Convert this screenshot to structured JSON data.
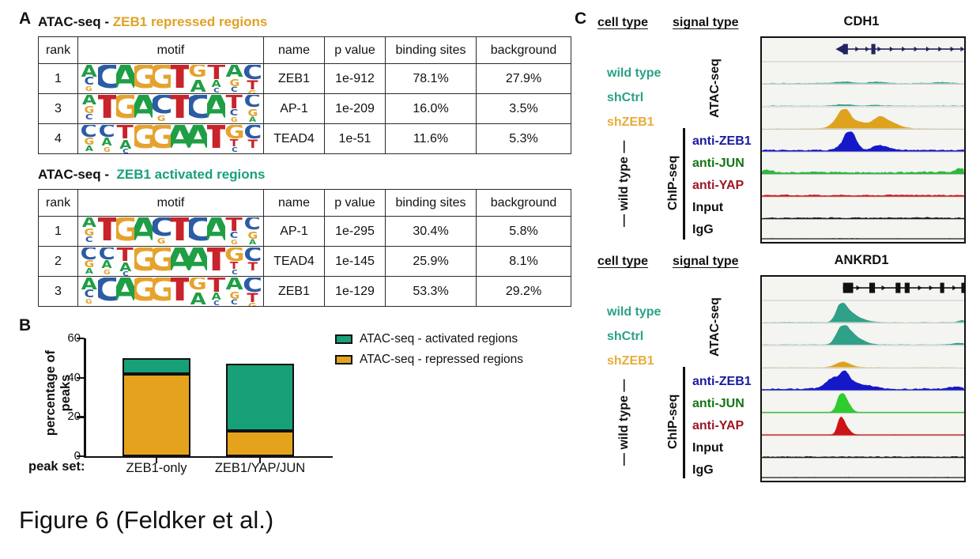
{
  "caption": "Figure 6 (Feldker et al.)",
  "panelA": {
    "label": "A",
    "motif_colors": {
      "A": "#1F9E45",
      "C": "#2B5CA5",
      "G": "#E5A32E",
      "T": "#C8242B"
    },
    "motifs": {
      "ZEB1": [
        [
          [
            "A",
            0.5
          ],
          [
            "C",
            0.32
          ],
          [
            "G",
            0.2
          ]
        ],
        [
          [
            "C",
            1
          ]
        ],
        [
          [
            "A",
            1
          ]
        ],
        [
          [
            "G",
            1
          ]
        ],
        [
          [
            "G",
            1
          ]
        ],
        [
          [
            "T",
            1
          ]
        ],
        [
          [
            "G",
            0.55
          ],
          [
            "A",
            0.5
          ]
        ],
        [
          [
            "T",
            0.65
          ],
          [
            "A",
            0.3
          ],
          [
            "C",
            0.2
          ]
        ],
        [
          [
            "A",
            0.55
          ],
          [
            "G",
            0.3
          ],
          [
            "C",
            0.22
          ]
        ],
        [
          [
            "C",
            0.65
          ],
          [
            "T",
            0.4
          ],
          [
            "G",
            0.25
          ]
        ]
      ],
      "AP-1": [
        [
          [
            "A",
            0.45
          ],
          [
            "G",
            0.3
          ],
          [
            "C",
            0.25
          ]
        ],
        [
          [
            "T",
            1
          ]
        ],
        [
          [
            "G",
            1
          ]
        ],
        [
          [
            "A",
            1
          ]
        ],
        [
          [
            "C",
            0.8
          ],
          [
            "G",
            0.25
          ]
        ],
        [
          [
            "T",
            1
          ]
        ],
        [
          [
            "C",
            1
          ]
        ],
        [
          [
            "A",
            1
          ]
        ],
        [
          [
            "T",
            0.6
          ],
          [
            "C",
            0.28
          ],
          [
            "G",
            0.2
          ]
        ],
        [
          [
            "C",
            0.55
          ],
          [
            "G",
            0.3
          ],
          [
            "A",
            0.22
          ]
        ]
      ],
      "TEAD4": [
        [
          [
            "C",
            0.55
          ],
          [
            "G",
            0.3
          ],
          [
            "A",
            0.25
          ]
        ],
        [
          [
            "C",
            0.55
          ],
          [
            "A",
            0.32
          ],
          [
            "G",
            0.2
          ]
        ],
        [
          [
            "T",
            0.6
          ],
          [
            "A",
            0.38
          ],
          [
            "C",
            0.2
          ]
        ],
        [
          [
            "G",
            1
          ]
        ],
        [
          [
            "G",
            1
          ]
        ],
        [
          [
            "A",
            1
          ]
        ],
        [
          [
            "A",
            1
          ]
        ],
        [
          [
            "T",
            1
          ]
        ],
        [
          [
            "G",
            0.6
          ],
          [
            "T",
            0.3
          ],
          [
            "C",
            0.2
          ]
        ],
        [
          [
            "C",
            0.6
          ],
          [
            "T",
            0.35
          ]
        ]
      ]
    },
    "tables": [
      {
        "title_prefix": "ATAC-seq - ",
        "title_highlight": "ZEB1 repressed regions",
        "title_color": "#DFA226",
        "headers": [
          "rank",
          "motif",
          "name",
          "p value",
          "binding sites",
          "background"
        ],
        "rows": [
          {
            "rank": "1",
            "motif": "ZEB1",
            "name": "ZEB1",
            "p_value": "1e-912",
            "binding_sites": "78.1%",
            "background": "27.9%"
          },
          {
            "rank": "3",
            "motif": "AP-1",
            "name": "AP-1",
            "p_value": "1e-209",
            "binding_sites": "16.0%",
            "background": "3.5%"
          },
          {
            "rank": "4",
            "motif": "TEAD4",
            "name": "TEAD4",
            "p_value": "1e-51",
            "binding_sites": "11.6%",
            "background": "5.3%"
          }
        ]
      },
      {
        "title_prefix": "ATAC-seq -  ",
        "title_highlight": "ZEB1 activated regions",
        "title_color": "#18A07C",
        "headers": [
          "rank",
          "motif",
          "name",
          "p value",
          "binding sites",
          "background"
        ],
        "rows": [
          {
            "rank": "1",
            "motif": "AP-1",
            "name": "AP-1",
            "p_value": "1e-295",
            "binding_sites": "30.4%",
            "background": "5.8%"
          },
          {
            "rank": "2",
            "motif": "TEAD4",
            "name": "TEAD4",
            "p_value": "1e-145",
            "binding_sites": "25.9%",
            "background": "8.1%"
          },
          {
            "rank": "3",
            "motif": "ZEB1",
            "name": "ZEB1",
            "p_value": "1e-129",
            "binding_sites": "53.3%",
            "background": "29.2%"
          }
        ]
      }
    ]
  },
  "panelB": {
    "label": "B"
  },
  "chart_data": {
    "type": "bar",
    "stacked": true,
    "categories": [
      "ZEB1-only",
      "ZEB1/YAP/JUN"
    ],
    "series": [
      {
        "name": "ATAC-seq - repressed regions",
        "color": "#E5A31D",
        "values": [
          42,
          13
        ]
      },
      {
        "name": "ATAC-seq - activated regions",
        "color": "#18A078",
        "values": [
          8,
          34
        ]
      }
    ],
    "totals": [
      50,
      47
    ],
    "title": "",
    "xlabel": "peak set:",
    "ylabel": "percentage of peaks",
    "ylim": [
      0,
      60
    ],
    "yticks": [
      0,
      20,
      40,
      60
    ],
    "grid": false,
    "legend_position": "top-right"
  },
  "panelC": {
    "label": "C",
    "col_headers": {
      "cell_type": "cell type",
      "signal_type": "signal type"
    },
    "cell_labels": [
      {
        "text": "wild type",
        "color": "#2AA186"
      },
      {
        "text": "shCtrl",
        "color": "#2AA186"
      },
      {
        "text": "shZEB1",
        "color": "#E8AC3A"
      }
    ],
    "group_cell_label": "— wild type —",
    "signal_groups": {
      "atac": "ATAC-seq",
      "chip": "ChIP-seq"
    },
    "track_labels": [
      {
        "text": "anti-ZEB1",
        "color": "#1A1AA0"
      },
      {
        "text": "anti-JUN",
        "color": "#157515"
      },
      {
        "text": "anti-YAP",
        "color": "#A01525"
      },
      {
        "text": "Input",
        "color": "#111111"
      },
      {
        "text": "IgG",
        "color": "#111111"
      }
    ],
    "panels": [
      {
        "gene": "CDH1",
        "gene_model": {
          "color": "#23235E",
          "line_start": 0.4,
          "start_arrow": true,
          "exons": [
            {
              "x": 0.405,
              "w": 0.024
            },
            {
              "x": 0.545,
              "w": 0.02
            }
          ],
          "ticks": [
            0.47,
            0.52,
            0.58,
            0.64,
            0.7,
            0.76,
            0.82,
            0.88,
            0.94,
            0.99
          ]
        },
        "tracks": [
          {
            "row": "wild type ATAC-seq",
            "color": "#2FA188",
            "noise": 0.05,
            "sparse": true,
            "baseline": false,
            "peaks": [
              {
                "c": 0.4,
                "h": 0.07,
                "w": 0.05
              },
              {
                "c": 0.57,
                "h": 0.06,
                "w": 0.04
              },
              {
                "c": 0.88,
                "h": 0.05,
                "w": 0.04
              }
            ]
          },
          {
            "row": "shCtrl ATAC-seq",
            "color": "#2FA188",
            "noise": 0.04,
            "sparse": true,
            "baseline": false,
            "peaks": [
              {
                "c": 0.4,
                "h": 0.07,
                "w": 0.04
              },
              {
                "c": 0.55,
                "h": 0.04,
                "w": 0.03
              }
            ]
          },
          {
            "row": "shZEB1 ATAC-seq",
            "color": "#DFA21F",
            "noise": 0.02,
            "sparse": true,
            "baseline": false,
            "peaks": [
              {
                "c": 0.405,
                "h": 0.85,
                "w": 0.022
              },
              {
                "c": 0.37,
                "h": 0.35,
                "w": 0.03
              },
              {
                "c": 0.46,
                "h": 0.25,
                "w": 0.04
              },
              {
                "c": 0.575,
                "h": 0.42,
                "w": 0.03
              },
              {
                "c": 0.63,
                "h": 0.22,
                "w": 0.04
              },
              {
                "c": 0.52,
                "h": 0.12,
                "w": 0.1
              }
            ]
          },
          {
            "row": "anti-ZEB1 ChIP-seq",
            "color": "#1518C8",
            "noise": 0.1,
            "sparse": false,
            "baseline": true,
            "peaks": [
              {
                "c": 0.425,
                "h": 0.88,
                "w": 0.018
              },
              {
                "c": 0.455,
                "h": 0.4,
                "w": 0.02
              },
              {
                "c": 0.4,
                "h": 0.3,
                "w": 0.03
              },
              {
                "c": 0.565,
                "h": 0.2,
                "w": 0.025
              },
              {
                "c": 0.6,
                "h": 0.1,
                "w": 0.03
              }
            ]
          },
          {
            "row": "anti-JUN ChIP-seq",
            "color": "#2DB83C",
            "noise": 0.13,
            "sparse": false,
            "baseline": true,
            "peaks": [
              {
                "c": 0.005,
                "h": 0.18,
                "w": 0.03
              },
              {
                "c": 0.975,
                "h": 0.18,
                "w": 0.03
              }
            ]
          },
          {
            "row": "anti-YAP ChIP-seq",
            "color": "#CC1414",
            "noise": 0.09,
            "sparse": false,
            "baseline": true,
            "peaks": []
          },
          {
            "row": "Input",
            "color": "#1f1f1f",
            "noise": 0.09,
            "sparse": false,
            "baseline": true,
            "peaks": []
          },
          {
            "row": "IgG",
            "color": "#1f1f1f",
            "noise": 0.05,
            "sparse": true,
            "baseline": true,
            "peaks": []
          }
        ]
      },
      {
        "gene": "ANKRD1",
        "gene_model": {
          "color": "#111111",
          "line_start": 0.4,
          "start_arrow": false,
          "exons": [
            {
              "x": 0.405,
              "w": 0.05
            },
            {
              "x": 0.535,
              "w": 0.028
            },
            {
              "x": 0.665,
              "w": 0.024
            },
            {
              "x": 0.71,
              "w": 0.024
            },
            {
              "x": 0.885,
              "w": 0.02
            },
            {
              "x": 0.99,
              "w": 0.014
            }
          ],
          "ticks": [
            0.475,
            0.6,
            0.78,
            0.835,
            0.95
          ]
        },
        "tracks": [
          {
            "row": "wild type ATAC-seq",
            "color": "#2FA188",
            "noise": 0.03,
            "sparse": true,
            "baseline": false,
            "peaks": [
              {
                "c": 0.385,
                "h": 0.85,
                "w": 0.022
              },
              {
                "c": 0.42,
                "h": 0.4,
                "w": 0.03
              },
              {
                "c": 0.47,
                "h": 0.18,
                "w": 0.04
              },
              {
                "c": 0.99,
                "h": 0.1,
                "w": 0.02
              }
            ]
          },
          {
            "row": "shCtrl ATAC-seq",
            "color": "#2FA188",
            "noise": 0.035,
            "sparse": true,
            "baseline": false,
            "peaks": [
              {
                "c": 0.39,
                "h": 0.82,
                "w": 0.026
              },
              {
                "c": 0.43,
                "h": 0.45,
                "w": 0.035
              },
              {
                "c": 0.48,
                "h": 0.15,
                "w": 0.04
              },
              {
                "c": 0.97,
                "h": 0.08,
                "w": 0.03
              }
            ]
          },
          {
            "row": "shZEB1 ATAC-seq",
            "color": "#DFA21F",
            "noise": 0.02,
            "sparse": true,
            "baseline": false,
            "peaks": [
              {
                "c": 0.385,
                "h": 0.22,
                "w": 0.03
              },
              {
                "c": 0.42,
                "h": 0.1,
                "w": 0.03
              }
            ]
          },
          {
            "row": "anti-ZEB1 ChIP-seq",
            "color": "#1518C8",
            "noise": 0.1,
            "sparse": false,
            "baseline": true,
            "peaks": [
              {
                "c": 0.405,
                "h": 0.62,
                "w": 0.018
              },
              {
                "c": 0.37,
                "h": 0.42,
                "w": 0.035
              },
              {
                "c": 0.33,
                "h": 0.28,
                "w": 0.03
              },
              {
                "c": 0.45,
                "h": 0.28,
                "w": 0.03
              },
              {
                "c": 0.52,
                "h": 0.15,
                "w": 0.04
              },
              {
                "c": 0.95,
                "h": 0.1,
                "w": 0.03
              }
            ]
          },
          {
            "row": "anti-JUN ChIP-seq",
            "color": "#2ECC2E",
            "noise": 0.03,
            "sparse": true,
            "baseline": true,
            "peaks": [
              {
                "c": 0.385,
                "h": 0.92,
                "w": 0.018
              },
              {
                "c": 0.415,
                "h": 0.45,
                "w": 0.02
              }
            ]
          },
          {
            "row": "anti-YAP ChIP-seq",
            "color": "#CC1414",
            "noise": 0.035,
            "sparse": true,
            "baseline": true,
            "peaks": [
              {
                "c": 0.385,
                "h": 0.85,
                "w": 0.015
              },
              {
                "c": 0.41,
                "h": 0.3,
                "w": 0.02
              }
            ]
          },
          {
            "row": "Input",
            "color": "#1f1f1f",
            "noise": 0.08,
            "sparse": false,
            "baseline": true,
            "peaks": []
          },
          {
            "row": "IgG",
            "color": "#1f1f1f",
            "noise": 0.05,
            "sparse": true,
            "baseline": true,
            "peaks": []
          }
        ]
      }
    ]
  }
}
